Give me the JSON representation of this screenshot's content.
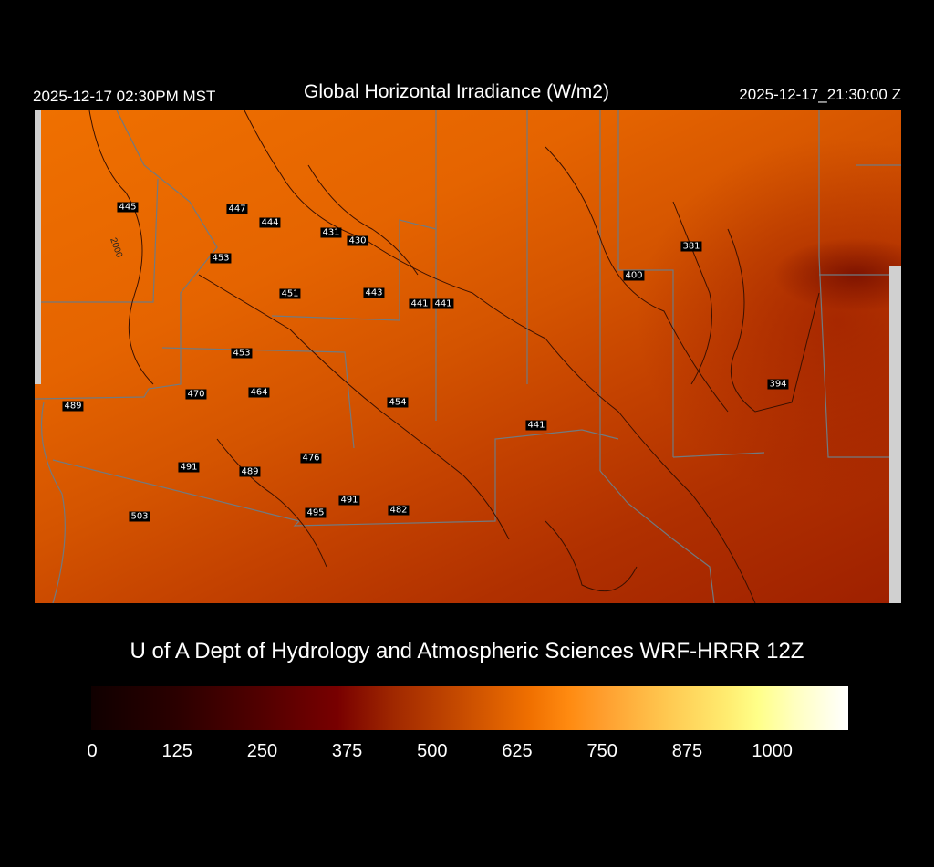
{
  "header": {
    "local_time": "2025-12-17 02:30PM MST",
    "title": "Global Horizontal Irradiance (W/m2)",
    "valid_time": "2025-12-17_21:30:00 Z"
  },
  "map": {
    "field": "Global Horizontal Irradiance",
    "units": "W/m2",
    "contour_label": "2000",
    "station_values": [
      "445",
      "447",
      "444",
      "431",
      "430",
      "453",
      "451",
      "443",
      "441",
      "441",
      "400",
      "381",
      "453",
      "470",
      "464",
      "489",
      "454",
      "441",
      "394",
      "491",
      "489",
      "476",
      "491",
      "495",
      "482",
      "503"
    ],
    "colors": {
      "low": "#9e2000",
      "high": "#ef7000",
      "contour": "#3a1000",
      "border": "#707a80"
    }
  },
  "credit": "U of A Dept of Hydrology and Atmospheric Sciences WRF-HRRR 12Z",
  "colorbar": {
    "ticks": [
      "0",
      "125",
      "250",
      "375",
      "500",
      "625",
      "750",
      "875",
      "1000"
    ],
    "colors": [
      "#100000",
      "#780000",
      "#cc5000",
      "#ff8a10",
      "#ffec70",
      "#ffff88",
      "#ffffff"
    ]
  }
}
